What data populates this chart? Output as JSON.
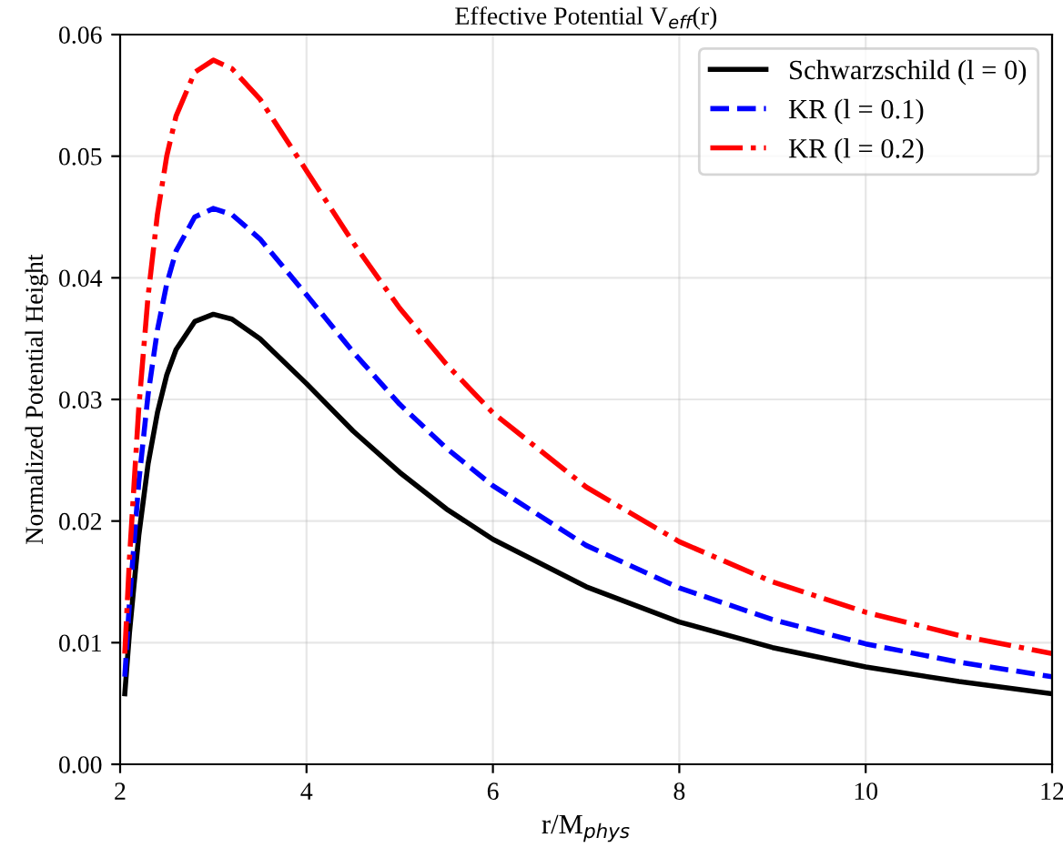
{
  "chart_data": {
    "type": "line",
    "title": "Effective Potential V$_{eff}$(r)",
    "xlabel": "r/M$_{phys}$",
    "ylabel": "Normalized Potential Height",
    "x": [
      2.05,
      2.1,
      2.2,
      2.3,
      2.4,
      2.5,
      2.6,
      2.8,
      3.0,
      3.2,
      3.5,
      4,
      4.5,
      5,
      5.5,
      6,
      7,
      8,
      9,
      10,
      11,
      12
    ],
    "series": [
      {
        "name": "Schwarzschild (l = 0)",
        "color": "#000000",
        "line_style": "solid",
        "values": [
          0.0058,
          0.0108,
          0.0188,
          0.0247,
          0.0289,
          0.032,
          0.0341,
          0.0364,
          0.037,
          0.0366,
          0.035,
          0.0313,
          0.0274,
          0.024,
          0.021,
          0.0185,
          0.0146,
          0.0117,
          0.0096,
          0.008,
          0.0068,
          0.0058
        ]
      },
      {
        "name": "KR (l = 0.1)",
        "color": "#0000ff",
        "line_style": "dashed",
        "values": [
          0.0072,
          0.0133,
          0.0232,
          0.0304,
          0.0357,
          0.0395,
          0.0422,
          0.045,
          0.0457,
          0.0452,
          0.0432,
          0.0386,
          0.0339,
          0.0296,
          0.026,
          0.0229,
          0.018,
          0.0145,
          0.0119,
          0.0099,
          0.0084,
          0.0072
        ]
      },
      {
        "name": "KR (l = 0.2)",
        "color": "#ff0000",
        "line_style": "dashdot",
        "values": [
          0.0091,
          0.0169,
          0.0293,
          0.0385,
          0.0452,
          0.05,
          0.0533,
          0.0569,
          0.0579,
          0.0572,
          0.0547,
          0.0488,
          0.0429,
          0.0375,
          0.0329,
          0.0289,
          0.0228,
          0.0183,
          0.015,
          0.0125,
          0.0106,
          0.0091
        ]
      }
    ],
    "xlim": [
      2,
      12
    ],
    "xticks": [
      2,
      4,
      6,
      8,
      10,
      12
    ],
    "ylim": [
      0,
      0.06
    ],
    "yticks": [
      {
        "value": 0,
        "label": "0.00"
      },
      {
        "value": 0.01,
        "label": "0.01"
      },
      {
        "value": 0.02,
        "label": "0.02"
      },
      {
        "value": 0.03,
        "label": "0.03"
      },
      {
        "value": 0.04,
        "label": "0.04"
      },
      {
        "value": 0.05,
        "label": "0.05"
      },
      {
        "value": 0.06,
        "label": "0.06"
      }
    ],
    "grid": true,
    "legend": "top right",
    "marker": "none"
  }
}
